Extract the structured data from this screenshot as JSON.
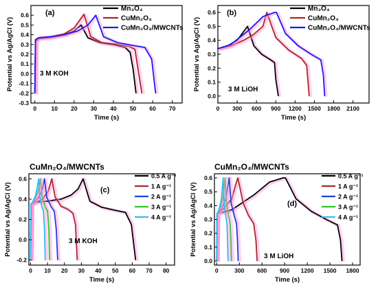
{
  "colors": {
    "0.5 A g⁻¹": "#000000",
    "1 A g⁻¹": "#a52a2a",
    "2 A g⁻¹": "#1f3fdb",
    "3 A g⁻¹": "#2cc52c",
    "4 A g⁻¹": "#33bdf2",
    "Mn₃O₄": "#000000",
    "CuMn₂O₄": "#b22222",
    "CuMn₂O₄/MWCNTs": "#1a1aef",
    "glow": "#ff99e0"
  },
  "chart_data": [
    {
      "type": "line",
      "panel_label": "(a)",
      "electrolyte": "3 M KOH",
      "header": "",
      "xlabel": "Time (s)",
      "ylabel": "Potential vs Ag/AgCl (V)",
      "xlim": [
        -2,
        75
      ],
      "ylim": [
        -0.3,
        0.7
      ],
      "xticks": [
        "0",
        "10",
        "20",
        "30",
        "40",
        "50",
        "60",
        "70"
      ],
      "yticks": [
        "-0.3",
        "-0.2",
        "-0.1",
        "0.0",
        "0.1",
        "0.2",
        "0.3",
        "0.4",
        "0.5",
        "0.6"
      ],
      "legend_position": "top-right",
      "series": [
        {
          "name": "Mn₃O₄",
          "x": [
            0,
            0.3,
            2,
            8,
            15,
            20,
            23.5,
            27,
            33,
            40,
            46,
            48.5,
            50,
            51.5
          ],
          "y": [
            -0.2,
            0.33,
            0.36,
            0.37,
            0.4,
            0.44,
            0.5,
            0.37,
            0.32,
            0.3,
            0.27,
            0.22,
            0.05,
            -0.2
          ]
        },
        {
          "name": "CuMn₂O₄",
          "x": [
            0,
            0.3,
            2,
            8,
            15,
            20,
            25,
            28.5,
            34,
            42,
            48,
            51,
            52.5,
            54.5
          ],
          "y": [
            -0.2,
            0.34,
            0.37,
            0.38,
            0.41,
            0.47,
            0.61,
            0.38,
            0.32,
            0.3,
            0.28,
            0.25,
            0.05,
            -0.2
          ]
        },
        {
          "name": "CuMn₂O₄/MWCNTs",
          "x": [
            0,
            0.3,
            2,
            8,
            15,
            22,
            27,
            31,
            35,
            42,
            50,
            56,
            59.5,
            61.5
          ],
          "y": [
            -0.2,
            0.35,
            0.37,
            0.38,
            0.4,
            0.44,
            0.5,
            0.6,
            0.38,
            0.32,
            0.29,
            0.27,
            0.15,
            -0.2
          ]
        }
      ]
    },
    {
      "type": "line",
      "panel_label": "(b)",
      "electrolyte": "3 M LiOH",
      "header": "",
      "xlabel": "Time (s)",
      "ylabel": "Potential vs Ag/AgCl (V)",
      "xlim": [
        0,
        2350
      ],
      "ylim": [
        -0.05,
        0.65
      ],
      "xticks": [
        "0",
        "300",
        "600",
        "900",
        "1200",
        "1500",
        "1800",
        "2100"
      ],
      "yticks": [
        "0.0",
        "0.1",
        "0.2",
        "0.3",
        "0.4",
        "0.5",
        "0.6"
      ],
      "legend_position": "top-right",
      "series": [
        {
          "name": "Mn₃O₄",
          "x": [
            0,
            150,
            300,
            460,
            560,
            680,
            820,
            880,
            900,
            940
          ],
          "y": [
            0.34,
            0.36,
            0.4,
            0.5,
            0.36,
            0.3,
            0.26,
            0.24,
            0.12,
            0.0
          ]
        },
        {
          "name": "CuMn₂O₄",
          "x": [
            0,
            200,
            400,
            550,
            700,
            760,
            900,
            1100,
            1300,
            1380,
            1420
          ],
          "y": [
            0.34,
            0.36,
            0.4,
            0.44,
            0.5,
            0.6,
            0.42,
            0.33,
            0.27,
            0.22,
            0.0
          ]
        },
        {
          "name": "CuMn₂O₄/MWCNTs",
          "x": [
            0,
            200,
            500,
            700,
            880,
            910,
            1050,
            1250,
            1450,
            1600,
            1640,
            1660
          ],
          "y": [
            0.34,
            0.37,
            0.48,
            0.57,
            0.6,
            0.6,
            0.45,
            0.36,
            0.3,
            0.26,
            0.15,
            0.0
          ]
        }
      ]
    },
    {
      "type": "line",
      "panel_label": "(c)",
      "electrolyte": "3 M KOH",
      "header": "CuMn₂O₄/MWCNTs",
      "xlabel": "Time (s)",
      "ylabel": "Potential vs Ag/AgCl (V)",
      "xlim": [
        -1,
        85
      ],
      "ylim": [
        -0.25,
        0.65
      ],
      "xticks": [
        "0",
        "10",
        "20",
        "30",
        "40",
        "50",
        "60",
        "70",
        "80"
      ],
      "yticks": [
        "-0.2",
        "0.0",
        "0.2",
        "0.4",
        "0.6"
      ],
      "legend_position": "top-right",
      "series": [
        {
          "name": "0.5 A g⁻¹",
          "x": [
            0,
            0.5,
            3,
            10,
            18,
            24,
            28,
            31,
            35,
            42,
            50,
            56,
            59.5,
            62
          ],
          "y": [
            -0.2,
            0.35,
            0.37,
            0.38,
            0.4,
            0.44,
            0.5,
            0.6,
            0.38,
            0.32,
            0.29,
            0.27,
            0.15,
            -0.2
          ]
        },
        {
          "name": "1 A g⁻¹",
          "x": [
            0,
            0.3,
            3,
            7,
            10.5,
            12.5,
            14.5,
            18,
            22,
            25,
            26.5,
            27.5
          ],
          "y": [
            -0.2,
            0.35,
            0.37,
            0.4,
            0.48,
            0.6,
            0.42,
            0.33,
            0.3,
            0.26,
            0.15,
            -0.2
          ]
        },
        {
          "name": "2 A g⁻¹",
          "x": [
            0,
            0.3,
            2,
            5,
            7,
            8.2,
            9.5,
            12,
            14,
            15.2,
            16
          ],
          "y": [
            -0.2,
            0.35,
            0.37,
            0.42,
            0.5,
            0.6,
            0.42,
            0.33,
            0.28,
            0.1,
            -0.2
          ]
        },
        {
          "name": "3 A g⁻¹",
          "x": [
            0,
            0.2,
            1.5,
            3.5,
            5,
            5.8,
            6.8,
            8.5,
            10,
            10.8,
            11.2
          ],
          "y": [
            -0.2,
            0.35,
            0.37,
            0.43,
            0.52,
            0.6,
            0.42,
            0.33,
            0.28,
            0.1,
            -0.2
          ]
        },
        {
          "name": "4 A g⁻¹",
          "x": [
            0,
            0.2,
            1.2,
            2.8,
            4,
            4.7,
            5.4,
            6.6,
            7.6,
            8.2,
            8.6
          ],
          "y": [
            -0.2,
            0.35,
            0.37,
            0.43,
            0.52,
            0.6,
            0.42,
            0.33,
            0.28,
            0.1,
            -0.2
          ]
        }
      ]
    },
    {
      "type": "line",
      "panel_label": "(d)",
      "electrolyte": "3 M LiOH",
      "header": "CuMn₂O₄/MWCNTs",
      "xlabel": "Time (s)",
      "ylabel": "Potential vs Ag/AgCl (V)",
      "xlim": [
        -30,
        1900
      ],
      "ylim": [
        -0.03,
        0.63
      ],
      "xticks": [
        "0",
        "300",
        "600",
        "900",
        "1200",
        "1500",
        "1800"
      ],
      "yticks": [
        "0.0",
        "0.1",
        "0.2",
        "0.3",
        "0.4",
        "0.5",
        "0.6"
      ],
      "legend_position": "top-right",
      "series": [
        {
          "name": "0.5 A g⁻¹",
          "x": [
            0,
            10,
            200,
            500,
            700,
            880,
            910,
            1050,
            1250,
            1450,
            1600,
            1640,
            1660
          ],
          "y": [
            0.0,
            0.34,
            0.37,
            0.48,
            0.57,
            0.6,
            0.6,
            0.45,
            0.36,
            0.3,
            0.26,
            0.15,
            0.0
          ]
        },
        {
          "name": "1 A g⁻¹",
          "x": [
            0,
            5,
            80,
            200,
            250,
            280,
            350,
            420,
            490,
            520,
            535
          ],
          "y": [
            0.0,
            0.34,
            0.37,
            0.45,
            0.55,
            0.6,
            0.42,
            0.33,
            0.27,
            0.15,
            0.0
          ]
        },
        {
          "name": "2 A g⁻¹",
          "x": [
            0,
            3,
            60,
            120,
            150,
            165,
            190,
            230,
            262,
            275,
            285
          ],
          "y": [
            0.0,
            0.34,
            0.37,
            0.45,
            0.55,
            0.6,
            0.42,
            0.33,
            0.27,
            0.15,
            0.0
          ]
        },
        {
          "name": "3 A g⁻¹",
          "x": [
            0,
            2,
            40,
            80,
            102,
            112,
            128,
            155,
            178,
            188,
            195
          ],
          "y": [
            0.0,
            0.34,
            0.37,
            0.45,
            0.55,
            0.6,
            0.42,
            0.33,
            0.27,
            0.15,
            0.0
          ]
        },
        {
          "name": "4 A g⁻¹",
          "x": [
            0,
            2,
            30,
            62,
            78,
            86,
            98,
            118,
            136,
            144,
            150
          ],
          "y": [
            0.0,
            0.34,
            0.37,
            0.45,
            0.55,
            0.6,
            0.42,
            0.33,
            0.27,
            0.15,
            0.0
          ]
        }
      ]
    }
  ]
}
